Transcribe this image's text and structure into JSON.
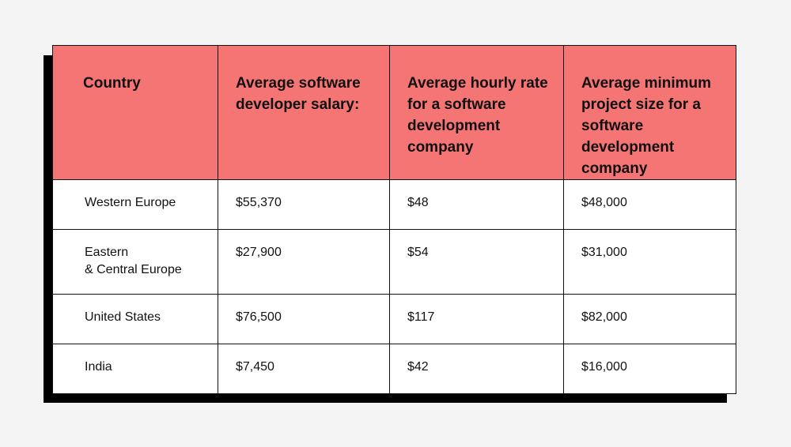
{
  "table": {
    "headers": [
      "Country",
      "Average software developer salary:",
      "Average hourly rate for a software development company",
      "Average minimum project size for a software development company"
    ],
    "rows": [
      {
        "country_lines": [
          "Western Europe"
        ],
        "salary": "$55,370",
        "hourly_rate": "$48",
        "min_project": "$48,000"
      },
      {
        "country_lines": [
          "Eastern",
          "& Central Europe"
        ],
        "salary": "$27,900",
        "hourly_rate": "$54",
        "min_project": "$31,000"
      },
      {
        "country_lines": [
          "United States"
        ],
        "salary": "$76,500",
        "hourly_rate": "$117",
        "min_project": "$82,000"
      },
      {
        "country_lines": [
          "India"
        ],
        "salary": "$7,450",
        "hourly_rate": "$42",
        "min_project": "$16,000"
      }
    ]
  },
  "colors": {
    "header_background": "#f47574",
    "shadow": "#000000",
    "page_background": "#f4f4f4"
  }
}
